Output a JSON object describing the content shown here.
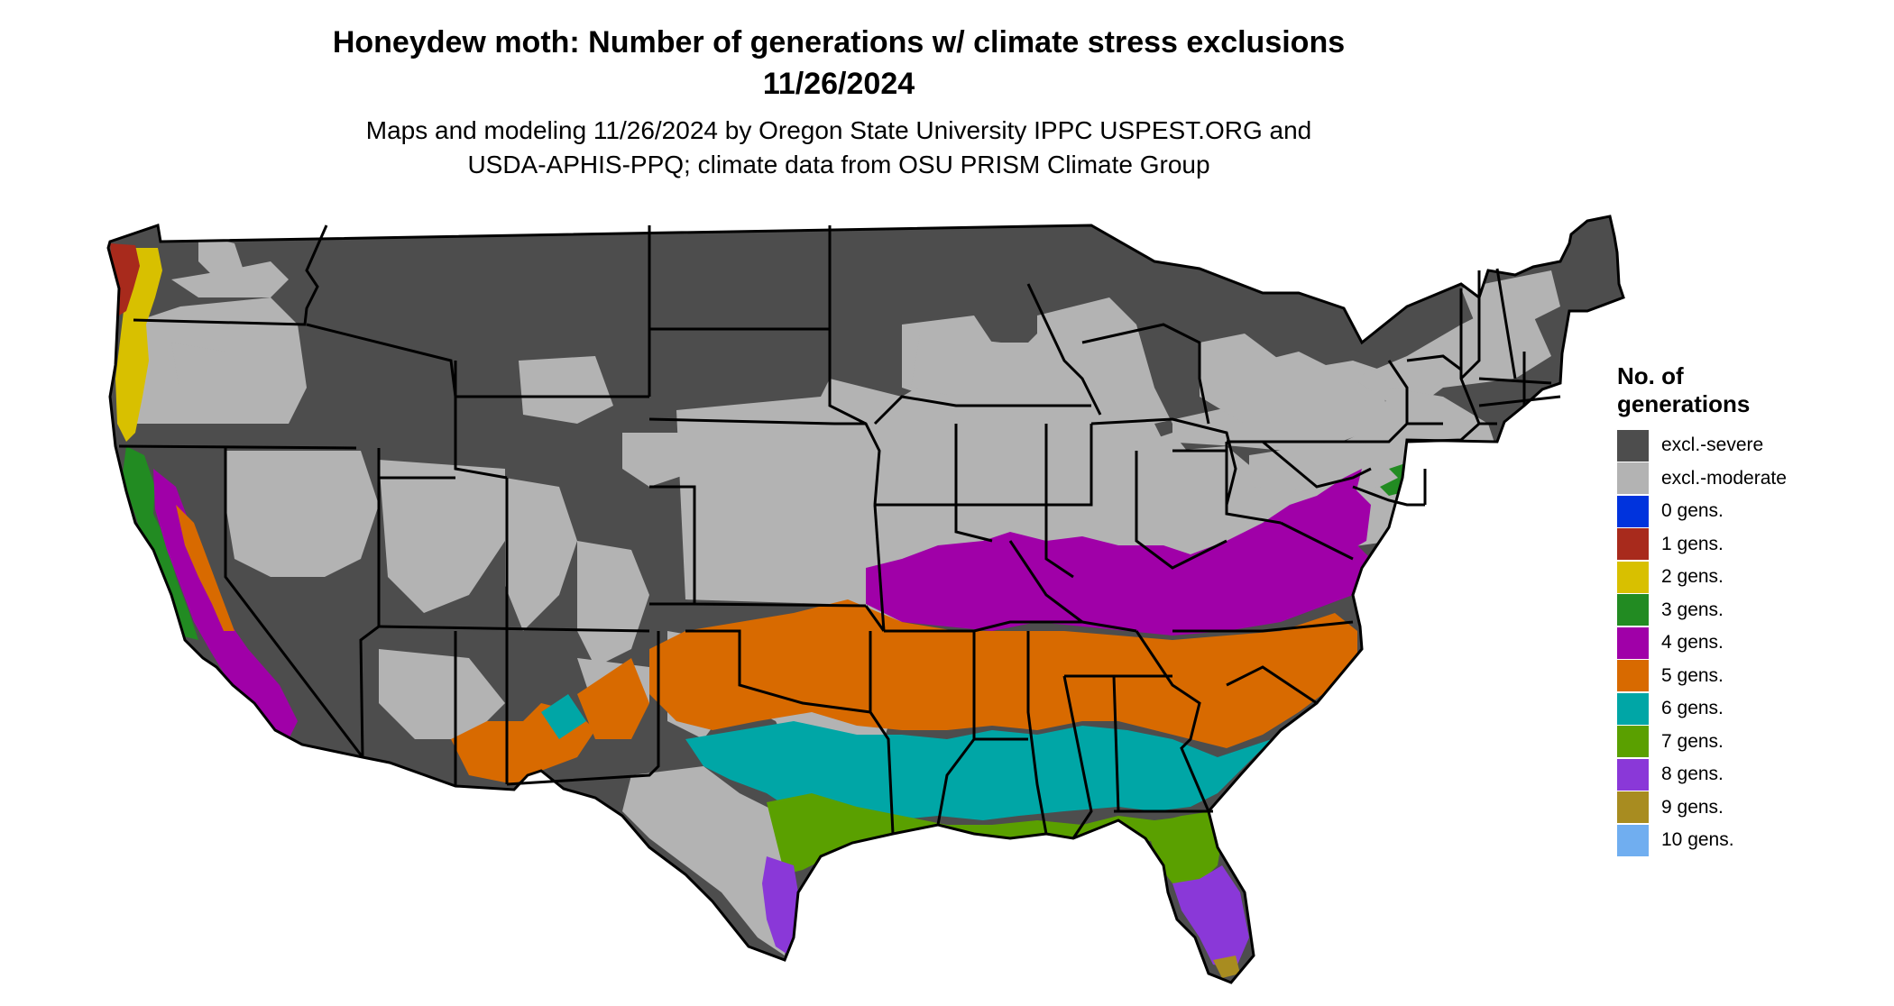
{
  "title_lines": [
    "Honeydew moth: Number of generations w/ climate stress exclusions",
    "11/26/2024"
  ],
  "subtitle_lines": [
    "Maps and modeling 11/26/2024 by Oregon State University IPPC USPEST.ORG and",
    "USDA-APHIS-PPQ; climate data from OSU PRISM Climate Group"
  ],
  "legend": {
    "title_lines": [
      "No. of",
      "generations"
    ],
    "items": [
      {
        "label": "excl.-severe",
        "color": "#4d4d4d"
      },
      {
        "label": "excl.-moderate",
        "color": "#b3b3b3"
      },
      {
        "label": "0 gens.",
        "color": "#0033dd"
      },
      {
        "label": "1 gens.",
        "color": "#a82a1c"
      },
      {
        "label": "2 gens.",
        "color": "#d8c000"
      },
      {
        "label": "3 gens.",
        "color": "#228b22"
      },
      {
        "label": "4 gens.",
        "color": "#a000a8"
      },
      {
        "label": "5 gens.",
        "color": "#d86a00"
      },
      {
        "label": "6 gens.",
        "color": "#00a6a6"
      },
      {
        "label": "7 gens.",
        "color": "#5aa000"
      },
      {
        "label": "8 gens.",
        "color": "#8a38d8"
      },
      {
        "label": "9 gens.",
        "color": "#a88c20"
      },
      {
        "label": "10 gens.",
        "color": "#70aef0"
      }
    ]
  },
  "map_colors": {
    "severe": "#4d4d4d",
    "moderate": "#b3b3b3",
    "g1": "#a82a1c",
    "g2": "#d8c000",
    "g3": "#228b22",
    "g4": "#a000a8",
    "g5": "#d86a00",
    "g6": "#00a6a6",
    "g7": "#5aa000",
    "g8": "#8a38d8",
    "g9": "#a88c20",
    "cyan_edge": "#00e5ee",
    "lime_edge": "#c8f000",
    "border": "#000000"
  }
}
